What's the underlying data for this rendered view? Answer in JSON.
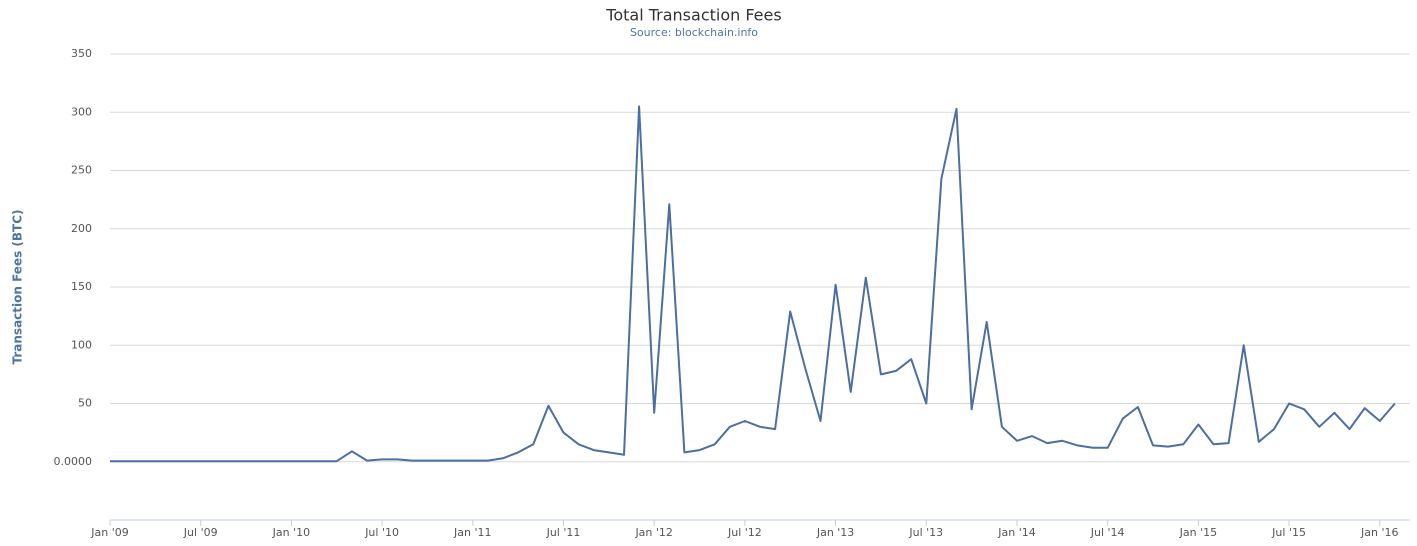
{
  "chart_data": {
    "type": "line",
    "title": "Total Transaction Fees",
    "subtitle": "Source: blockchain.info",
    "y_label": "Transaction Fees (BTC)",
    "x": [
      "2009-01",
      "2009-02",
      "2009-03",
      "2009-04",
      "2009-05",
      "2009-06",
      "2009-07",
      "2009-08",
      "2009-09",
      "2009-10",
      "2009-11",
      "2009-12",
      "2010-01",
      "2010-02",
      "2010-03",
      "2010-04",
      "2010-05",
      "2010-06",
      "2010-07",
      "2010-08",
      "2010-09",
      "2010-10",
      "2010-11",
      "2010-12",
      "2011-01",
      "2011-02",
      "2011-03",
      "2011-04",
      "2011-05",
      "2011-06",
      "2011-07",
      "2011-08",
      "2011-09",
      "2011-10",
      "2011-11",
      "2011-12",
      "2012-01",
      "2012-02",
      "2012-03",
      "2012-04",
      "2012-05",
      "2012-06",
      "2012-07",
      "2012-08",
      "2012-09",
      "2012-10",
      "2012-11",
      "2012-12",
      "2013-01",
      "2013-02",
      "2013-03",
      "2013-04",
      "2013-05",
      "2013-06",
      "2013-07",
      "2013-08",
      "2013-09",
      "2013-10",
      "2013-11",
      "2013-12",
      "2014-01",
      "2014-02",
      "2014-03",
      "2014-04",
      "2014-05",
      "2014-06",
      "2014-07",
      "2014-08",
      "2014-09",
      "2014-10",
      "2014-11",
      "2014-12",
      "2015-01",
      "2015-02",
      "2015-03",
      "2015-04",
      "2015-05",
      "2015-06",
      "2015-07",
      "2015-08",
      "2015-09",
      "2015-10",
      "2015-11",
      "2015-12",
      "2016-01",
      "2016-02"
    ],
    "series": [
      {
        "name": "Transaction Fees",
        "color": "#4a6fa0",
        "values": [
          0.5,
          0.5,
          0.5,
          0.5,
          0.5,
          0.5,
          0.5,
          0.5,
          0.5,
          0.5,
          0.5,
          0.5,
          0.5,
          0.5,
          0.5,
          0.5,
          9,
          1,
          2,
          2,
          1,
          1,
          1,
          1,
          1,
          1,
          3,
          8,
          15,
          48,
          25,
          15,
          10,
          8,
          6,
          305,
          42,
          221,
          8,
          10,
          15,
          30,
          35,
          30,
          28,
          129,
          80,
          35,
          152,
          60,
          158,
          75,
          78,
          88,
          50,
          243,
          303,
          45,
          120,
          30,
          18,
          22,
          16,
          18,
          14,
          12,
          12,
          37,
          47,
          14,
          13,
          15,
          32,
          15,
          16,
          100,
          17,
          28,
          50,
          45,
          30,
          42,
          28,
          46,
          35,
          50
        ]
      }
    ],
    "xlim": [
      "2009-01",
      "2016-03"
    ],
    "xticks": [
      {
        "value": "2009-01",
        "label": "Jan '09"
      },
      {
        "value": "2009-07",
        "label": "Jul '09"
      },
      {
        "value": "2010-01",
        "label": "Jan '10"
      },
      {
        "value": "2010-07",
        "label": "Jul '10"
      },
      {
        "value": "2011-01",
        "label": "Jan '11"
      },
      {
        "value": "2011-07",
        "label": "Jul '11"
      },
      {
        "value": "2012-01",
        "label": "Jan '12"
      },
      {
        "value": "2012-07",
        "label": "Jul '12"
      },
      {
        "value": "2013-01",
        "label": "Jan '13"
      },
      {
        "value": "2013-07",
        "label": "Jul '13"
      },
      {
        "value": "2014-01",
        "label": "Jan '14"
      },
      {
        "value": "2014-07",
        "label": "Jul '14"
      },
      {
        "value": "2015-01",
        "label": "Jan '15"
      },
      {
        "value": "2015-07",
        "label": "Jul '15"
      },
      {
        "value": "2016-01",
        "label": "Jan '16"
      }
    ],
    "ylim": [
      -50,
      350
    ],
    "yticks": [
      {
        "value": 0,
        "label": "0.0000"
      },
      50,
      100,
      150,
      200,
      250,
      300,
      350
    ],
    "grid": true
  }
}
